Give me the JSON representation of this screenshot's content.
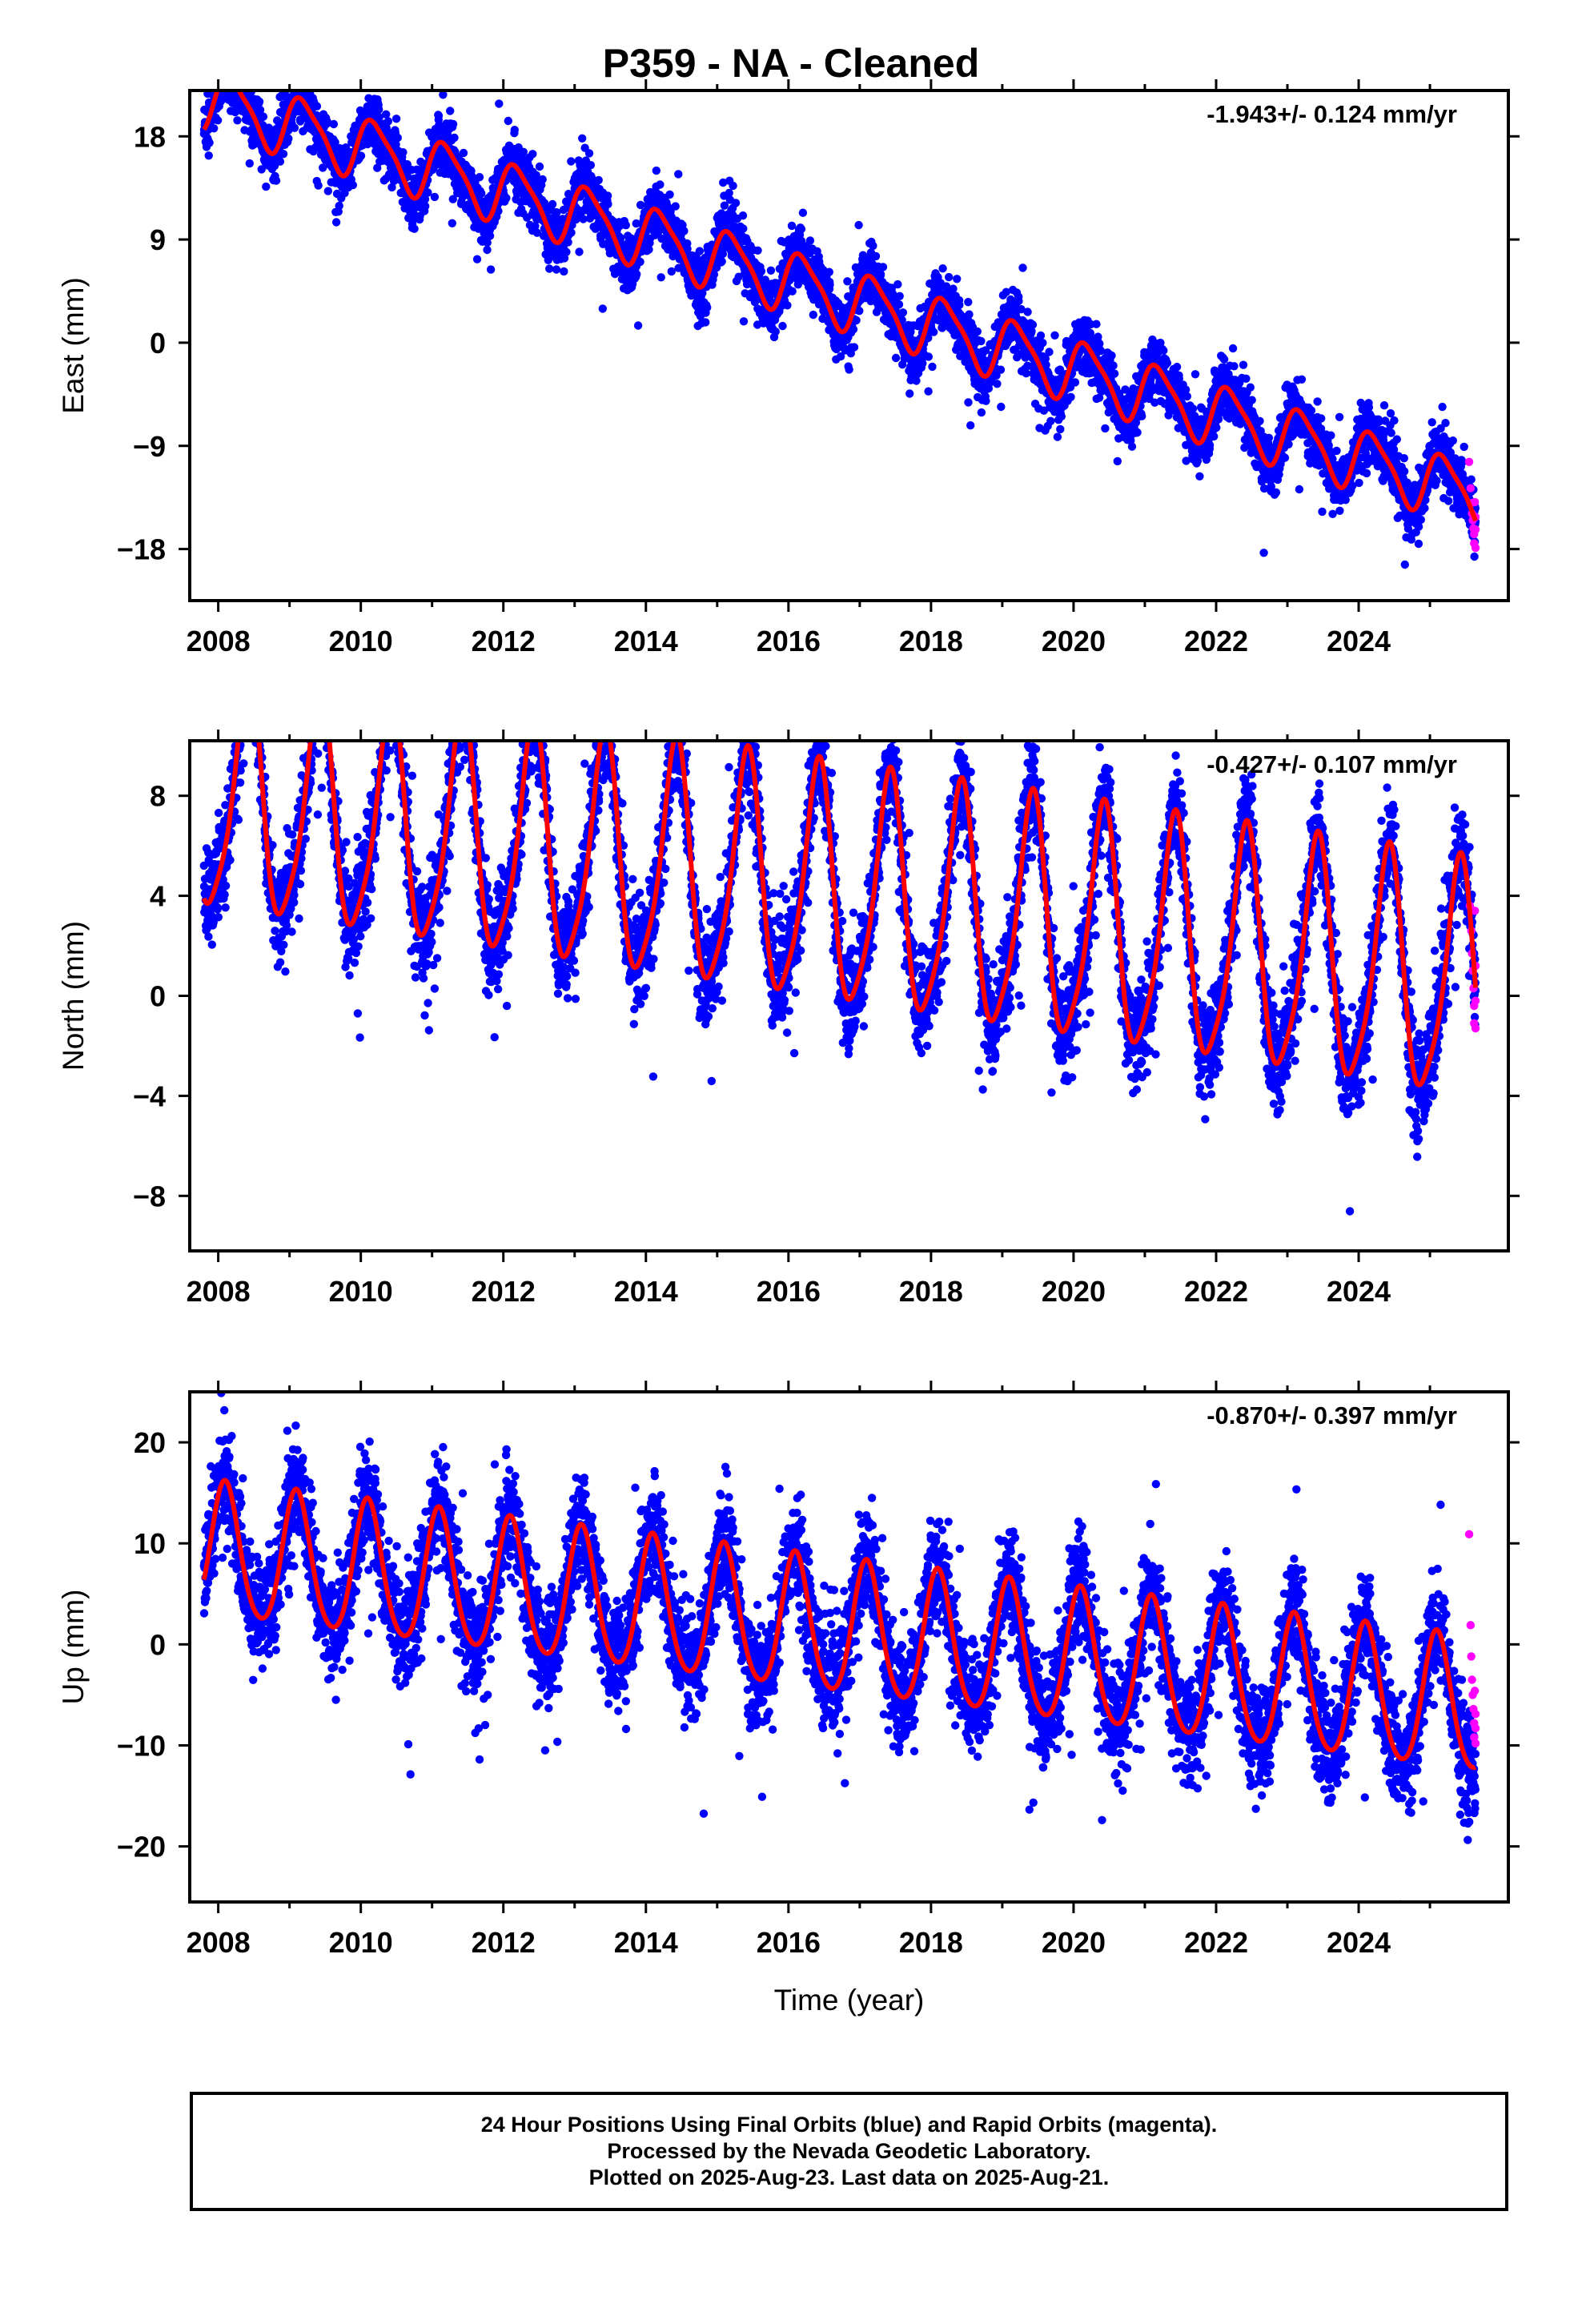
{
  "chart_data": [
    {
      "type": "scatter",
      "title": "P359  - NA - Cleaned",
      "ylabel": "East (mm)",
      "xlabel": "",
      "annotation": "-1.943+/- 0.124 mm/yr",
      "xlim": [
        2007.6,
        2026.1
      ],
      "ylim": [
        -22.5,
        22
      ],
      "xticks": [
        "2008",
        "2010",
        "2012",
        "2014",
        "2016",
        "2018",
        "2020",
        "2022",
        "2024"
      ],
      "yticks": [
        "18",
        "9",
        "0",
        "-9",
        "-18"
      ],
      "ytick_values": [
        18,
        9,
        0,
        -9,
        -18
      ],
      "model": {
        "trend_mm_per_yr": -1.943,
        "start": [
          2007.8,
          18.6
        ],
        "amp1": 2.6,
        "phase1": 0.3,
        "amp2": 0.6,
        "phase2": 1.0,
        "noise": 1.6,
        "end": 2025.64
      },
      "rapid_points": {
        "x": [
          2025.55,
          2025.57,
          2025.58,
          2025.59,
          2025.6,
          2025.61,
          2025.62,
          2025.62,
          2025.63,
          2025.64,
          2025.64,
          2025.64
        ],
        "y": [
          -10.4,
          -12.7,
          -14.0,
          -14.9,
          -15.5,
          -16.2,
          -16.7,
          -17.5,
          -13.9,
          -15.2,
          -16.3,
          -17.9
        ]
      },
      "colors": {
        "final": "#0000ff",
        "rapid": "#ff00ff",
        "fit": "#ff0000"
      }
    },
    {
      "type": "scatter",
      "title": "",
      "ylabel": "North (mm)",
      "xlabel": "",
      "annotation": "-0.427+/- 0.107 mm/yr",
      "xlim": [
        2007.6,
        2026.1
      ],
      "ylim": [
        -10.2,
        10.2
      ],
      "xticks": [
        "2008",
        "2010",
        "2012",
        "2014",
        "2016",
        "2018",
        "2020",
        "2022",
        "2024"
      ],
      "yticks": [
        "8",
        "4",
        "0",
        "-4",
        "-8"
      ],
      "ytick_values": [
        8,
        4,
        0,
        -4,
        -8
      ],
      "model": {
        "trend_mm_per_yr": -0.427,
        "start": [
          2007.8,
          3.9
        ],
        "amp1": 4.6,
        "phase1": 5.28,
        "amp2": 0.9,
        "phase2": 2.0,
        "noise": 1.3,
        "end": 2025.64
      },
      "rapid_points": {
        "x": [
          2025.56,
          2025.58,
          2025.59,
          2025.6,
          2025.61,
          2025.62,
          2025.62,
          2025.63,
          2025.64,
          2025.64,
          2025.64
        ],
        "y": [
          3.6,
          2.6,
          1.7,
          1.0,
          0.3,
          -0.4,
          -1.1,
          3.4,
          1.2,
          -0.2,
          -1.3
        ]
      },
      "colors": {
        "final": "#0000ff",
        "rapid": "#ff00ff",
        "fit": "#ff0000"
      }
    },
    {
      "type": "scatter",
      "title": "",
      "ylabel": "Up (mm)",
      "xlabel": "Time (year)",
      "annotation": "-0.870+/- 0.397 mm/yr",
      "xlim": [
        2007.6,
        2026.1
      ],
      "ylim": [
        -25.5,
        25
      ],
      "xticks": [
        "2008",
        "2010",
        "2012",
        "2014",
        "2016",
        "2018",
        "2020",
        "2022",
        "2024"
      ],
      "yticks": [
        "20",
        "10",
        "0",
        "-10",
        "-20"
      ],
      "ytick_values": [
        20,
        10,
        0,
        -10,
        -20
      ],
      "model": {
        "trend_mm_per_yr": -0.87,
        "start": [
          2007.8,
          6.4
        ],
        "amp1": 6.6,
        "phase1": 0.95,
        "amp2": 0.8,
        "phase2": 0.5,
        "noise": 3.4,
        "end": 2025.64
      },
      "rapid_points": {
        "x": [
          2025.55,
          2025.57,
          2025.58,
          2025.59,
          2025.6,
          2025.61,
          2025.62,
          2025.62,
          2025.63,
          2025.64,
          2025.64,
          2025.64
        ],
        "y": [
          10.9,
          1.9,
          -1.2,
          -3.5,
          -5.0,
          -6.4,
          -7.8,
          -9.2,
          -4.6,
          -6.9,
          -8.3,
          -9.8
        ]
      },
      "colors": {
        "final": "#0000ff",
        "rapid": "#ff00ff",
        "fit": "#ff0000"
      }
    }
  ],
  "footer": {
    "line1": "24 Hour Positions Using Final Orbits (blue) and Rapid Orbits (magenta).",
    "line2": "Processed by the Nevada Geodetic Laboratory.",
    "line3": "Plotted on 2025-Aug-23. Last data on 2025-Aug-21."
  }
}
